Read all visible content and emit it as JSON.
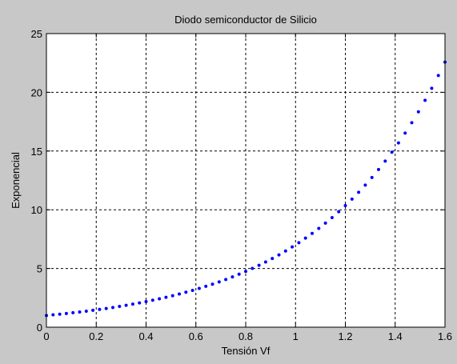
{
  "chart_data": {
    "type": "scatter",
    "title": "Diodo semiconductor de Silicio",
    "xlabel": "Tensión Vf",
    "ylabel": "Exponencial",
    "xlim": [
      0,
      1.6
    ],
    "ylim": [
      0,
      25
    ],
    "xticks": [
      0,
      0.2,
      0.4,
      0.6,
      0.8,
      1,
      1.2,
      1.4,
      1.6
    ],
    "xtick_labels": [
      "0",
      "0.2",
      "0.4",
      "0.6",
      "0.8",
      "1",
      "1.2",
      "1.4",
      "1.6"
    ],
    "yticks": [
      0,
      5,
      10,
      15,
      20,
      25
    ],
    "ytick_labels": [
      "0",
      "5",
      "10",
      "15",
      "20",
      "25"
    ],
    "grid": true,
    "series": [
      {
        "color": "#0000ff",
        "marker": "point",
        "x": [
          0,
          0.026667,
          0.053333,
          0.08,
          0.106667,
          0.133333,
          0.16,
          0.186667,
          0.213333,
          0.24,
          0.266667,
          0.293333,
          0.32,
          0.346667,
          0.373333,
          0.4,
          0.426667,
          0.453333,
          0.48,
          0.506667,
          0.533333,
          0.56,
          0.586667,
          0.613333,
          0.64,
          0.666667,
          0.693333,
          0.72,
          0.746667,
          0.773333,
          0.8,
          0.826667,
          0.853333,
          0.88,
          0.906667,
          0.933333,
          0.96,
          0.986667,
          1.013333,
          1.04,
          1.066667,
          1.093333,
          1.12,
          1.146667,
          1.173333,
          1.2,
          1.226667,
          1.253333,
          1.28,
          1.306667,
          1.333333,
          1.36,
          1.386667,
          1.413333,
          1.44,
          1.466667,
          1.493333,
          1.52,
          1.546667,
          1.573333,
          1.6
        ],
        "y": [
          1,
          1.0533,
          1.1095,
          1.1686,
          1.231,
          1.2966,
          1.3657,
          1.4385,
          1.5152,
          1.596,
          1.6811,
          1.7708,
          1.8652,
          1.9646,
          2.0694,
          2.1797,
          2.296,
          2.4184,
          2.5473,
          2.6831,
          2.8262,
          2.9769,
          3.1356,
          3.3028,
          3.4789,
          3.6644,
          3.8598,
          4.0656,
          4.2823,
          4.5107,
          4.7512,
          5.0045,
          5.2713,
          5.5524,
          5.8485,
          6.1603,
          6.4888,
          6.8347,
          7.1992,
          7.583,
          7.9873,
          8.4132,
          8.8618,
          9.3343,
          9.832,
          10.3563,
          10.9085,
          11.4901,
          12.1027,
          12.748,
          13.4278,
          14.1437,
          14.8978,
          15.6922,
          16.5289,
          17.4102,
          18.3385,
          19.3163,
          20.3463,
          21.4311,
          22.5738
        ]
      }
    ]
  }
}
